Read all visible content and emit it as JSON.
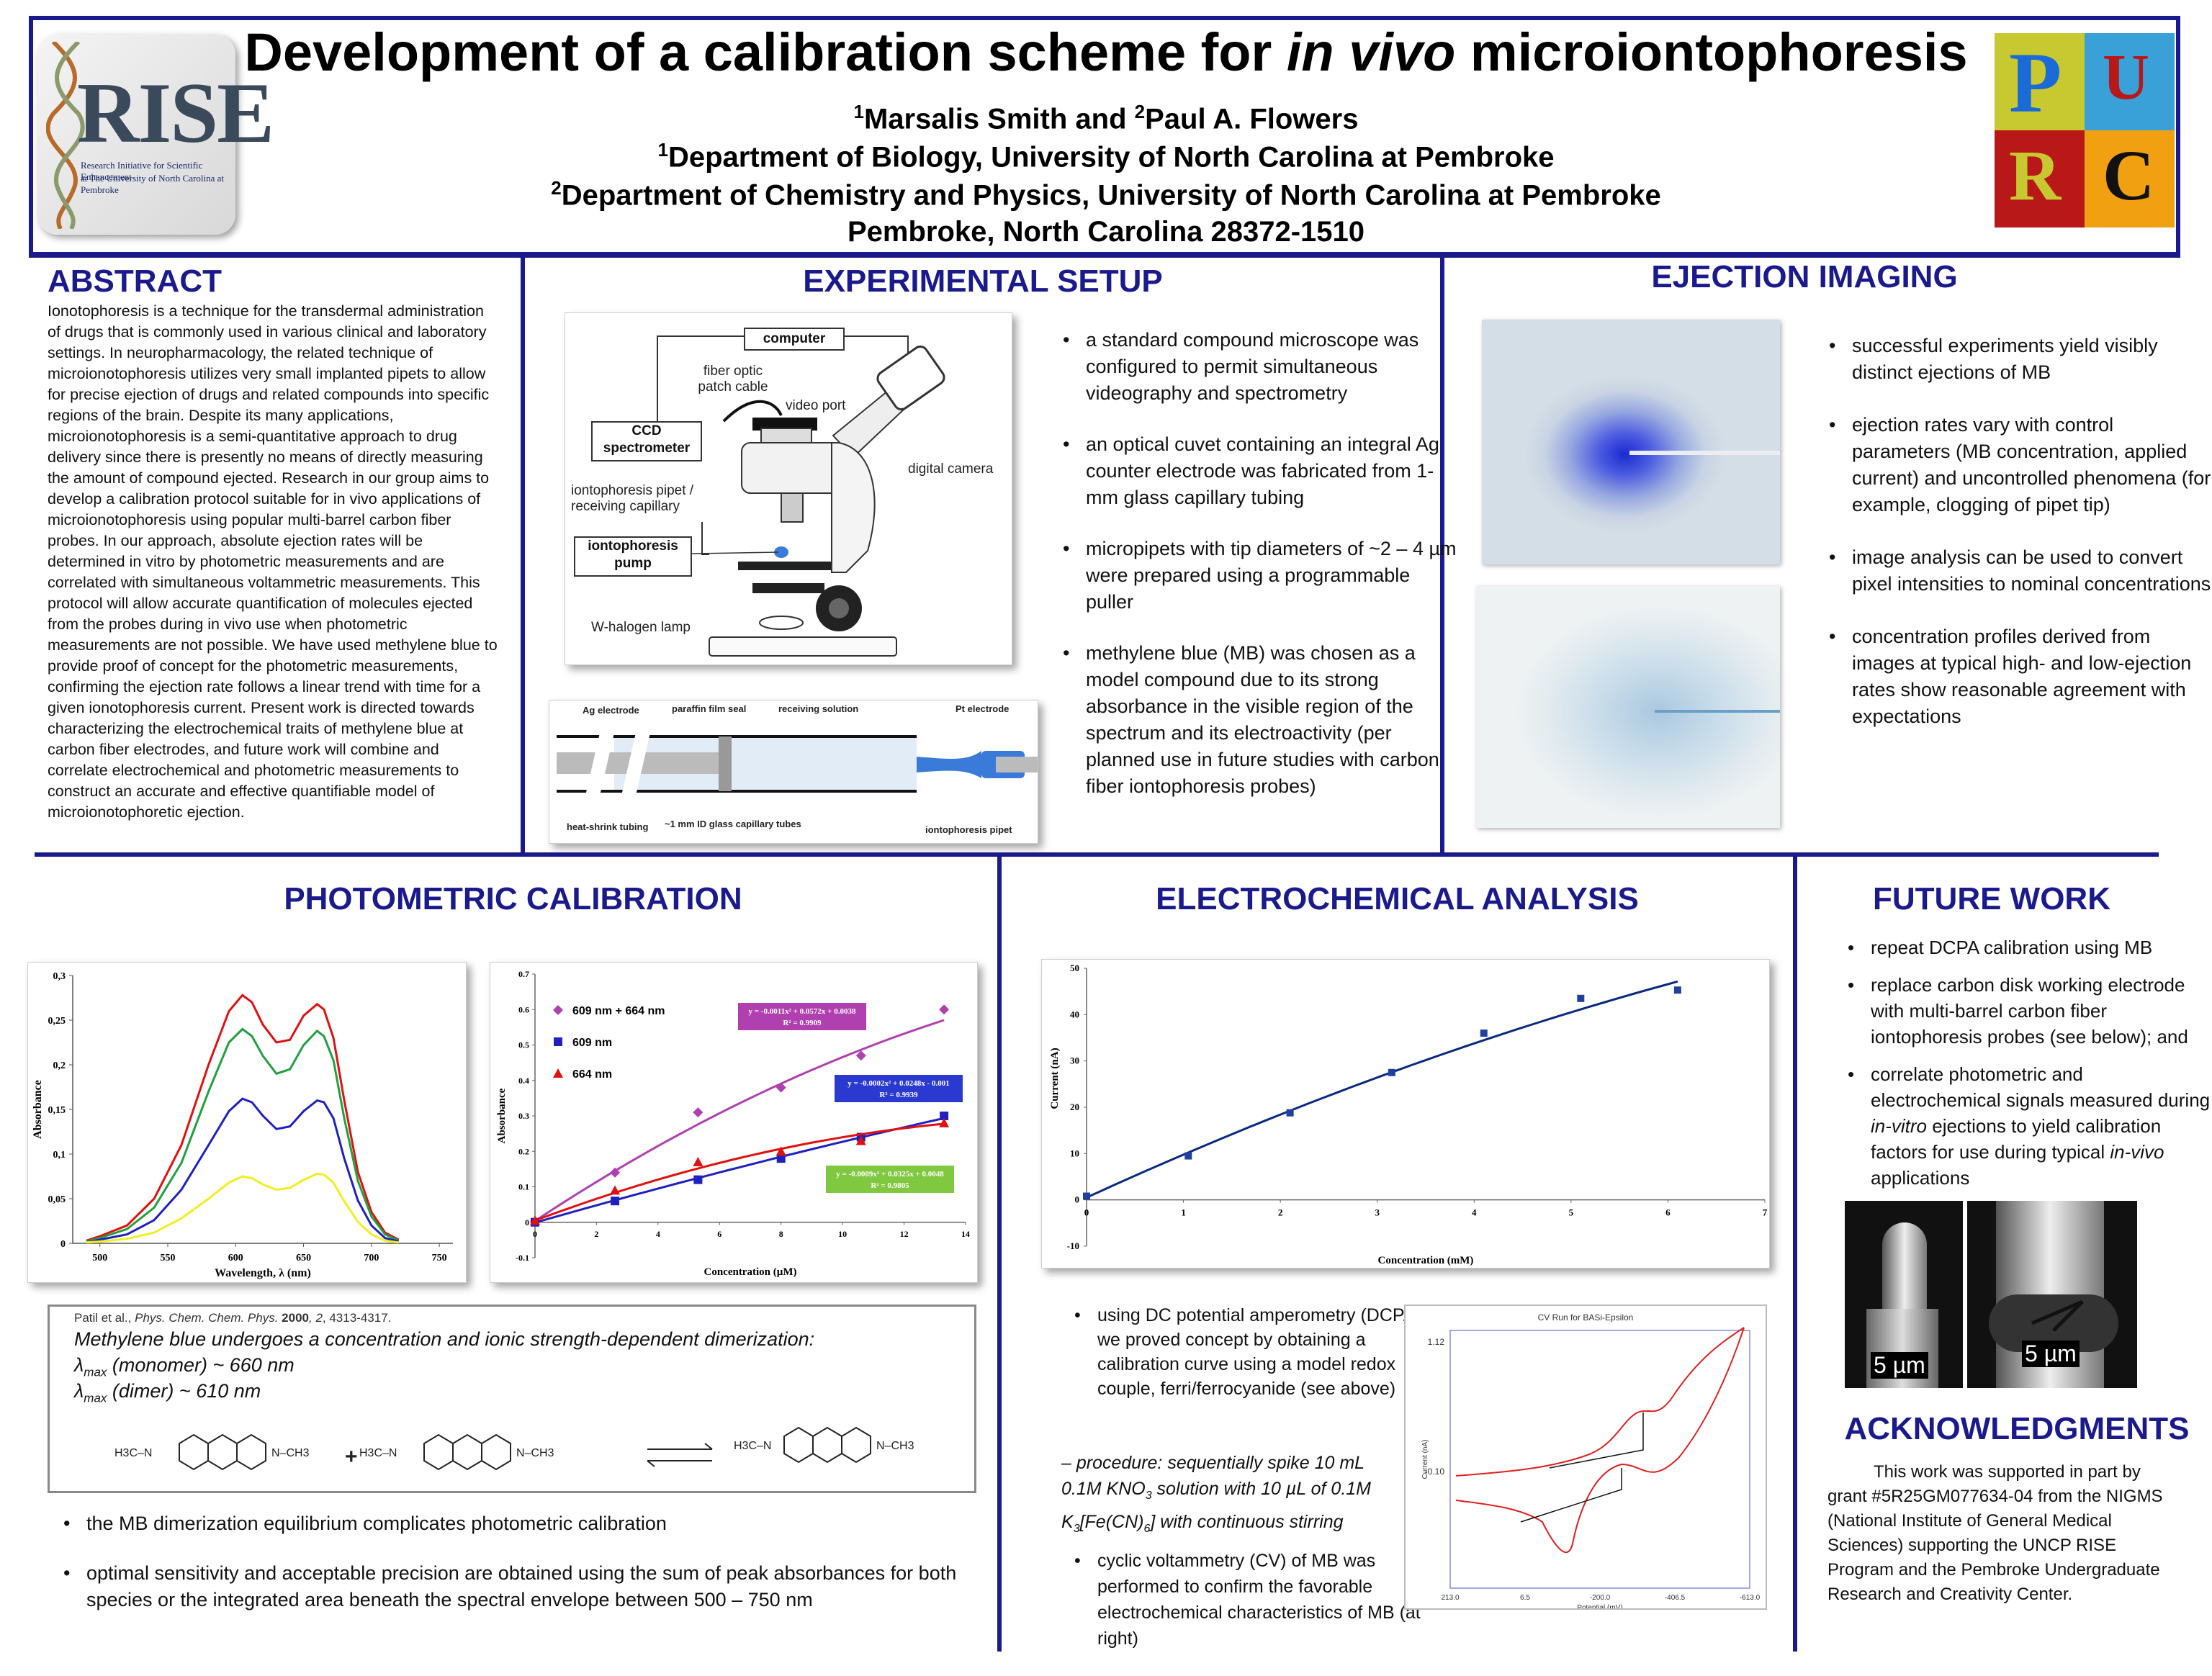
{
  "header": {
    "title_pre": "Development of a calibration scheme for ",
    "title_italic": "in vivo",
    "title_post": " microiontophoresis",
    "author_line": "Marsalis Smith and Paul A. Flowers",
    "author1_sup": "1",
    "author1": "Marsalis Smith and ",
    "author2_sup": "2",
    "author2": "Paul A. Flowers",
    "affil1_sup": "1",
    "affil1": "Department of Biology, University of North Carolina at Pembroke",
    "affil2_sup": "2",
    "affil2": "Department of Chemistry and Physics, University of North Carolina at Pembroke",
    "location": "Pembroke, North Carolina 28372-1510",
    "logo_left_text": "RISE",
    "logo_left_sub1": "Research Initiative for Scientific Enhancement",
    "logo_left_sub2": "at The University of North Carolina at Pembroke",
    "logo_right_letters": [
      "P",
      "U",
      "R",
      "C"
    ]
  },
  "abstract": {
    "heading": "ABSTRACT",
    "text": "Ionotophoresis is a technique for the transdermal administration of drugs that is commonly used in various clinical and laboratory settings.  In neuropharmacology, the related technique of microionotophoresis utilizes very small implanted pipets to allow for precise ejection of drugs and related compounds into specific regions of the brain.  Despite its many applications, microionotophoresis is a semi-quantitative approach to drug delivery since there is presently no means of directly measuring the amount of compound ejected.  Research in our group aims to develop a calibration protocol suitable for in vivo applications of microionotophoresis using popular multi-barrel carbon fiber probes.  In our approach, absolute ejection rates will be determined in vitro by photometric measurements and are correlated with simultaneous voltammetric measurements.  This protocol will allow accurate quantification of molecules ejected from the probes during in vivo use when photometric measurements are not possible.  We have used methylene blue to provide proof of concept for the photometric measurements, confirming the ejection rate follows a linear trend with time for a given ionotophoresis current.  Present work is directed towards characterizing the electrochemical traits of methylene blue at carbon fiber electrodes, and future work will combine and correlate electrochemical and photometric measurements to construct an accurate and effective quantifiable model of microionotophoretic ejection."
  },
  "setup": {
    "heading": "EXPERIMENTAL SETUP",
    "diagram": {
      "computer": "computer",
      "fiber": "fiber optic\npatch cable",
      "video_port": "video port",
      "ccd": "CCD\nspectrometer",
      "digital_camera": "digital camera",
      "pipet": "iontophoresis pipet /\nreceiving capillary",
      "pump": "iontophoresis\npump",
      "lamp": "W-halogen lamp"
    },
    "cuvette": {
      "ag": "Ag electrode",
      "paraffin": "paraffin film seal",
      "receiving": "receiving solution",
      "pt": "Pt electrode",
      "heat": "heat-shrink tubing",
      "tubes": "~1 mm ID glass capillary tubes",
      "ipipet": "iontophoresis pipet"
    },
    "bullets": [
      "a standard compound microscope was configured to permit simultaneous videography and spectrometry",
      "an optical cuvet containing an integral Ag counter electrode was fabricated from 1-mm glass capillary tubing",
      "micropipets with tip diameters of ~2 – 4 µm were prepared using a programmable puller",
      "methylene blue (MB) was chosen as a model compound due to its strong absorbance in the visible region of the spectrum and its electroactivity (per planned use in future studies with carbon fiber iontophoresis probes)"
    ]
  },
  "ejection": {
    "heading": "EJECTION IMAGING",
    "bullets": [
      "successful experiments yield visibly distinct ejections of MB",
      "ejection rates vary with control parameters (MB concentration, applied current) and uncontrolled phenomena (for example, clogging of pipet tip)",
      "image analysis can be used to convert pixel intensities to nominal concentrations",
      "concentration profiles derived from images at typical high- and low-ejection rates  show reasonable agreement with expectations"
    ]
  },
  "photometric": {
    "heading": "PHOTOMETRIC CALIBRATION",
    "ref_pre": "Patil et al., ",
    "ref_journal": "Phys. Chem. Chem. Phys.",
    "ref_year": " 2000",
    "ref_vol": ", 2",
    "ref_pages": ", 4313-4317.",
    "dimer_line": "Methylene blue undergoes  a concentration and ionic strength-dependent dimerization:",
    "lmax_mono": "λmax (monomer) ~ 660 nm",
    "lmax_mono_a": "λ",
    "lmax_mono_sub": "max",
    "lmax_mono_b": " (monomer) ~ 660 nm",
    "lmax_dimer_a": "λ",
    "lmax_dimer_sub": "max",
    "lmax_dimer_b": " (dimer) ~ 610 nm",
    "bullets": [
      "the MB dimerization equilibrium complicates photometric calibration",
      "optimal sensitivity and acceptable precision are obtained using the sum of peak absorbances for both species or the integrated area beneath the spectral envelope between 500 – 750 nm"
    ]
  },
  "electrochem": {
    "heading": "ELECTROCHEMICAL ANALYSIS",
    "bullet1": "using DC potential amperometry (DCPA) we proved concept by obtaining a calibration curve using a model redox couple, ferri/ferrocyanide (see above)",
    "procedure": "– procedure:  sequentially  spike 10 mL 0.1M KNO3 solution with 10 µL of  0.1M K3[Fe(CN)6] with continuous stirring",
    "proc_a": "– procedure:  sequentially  spike 10 mL 0.1M KNO",
    "proc_sub1": "3",
    "proc_b": " solution with 10 µL of  0.1M K",
    "proc_sub2": "3",
    "proc_c": "[Fe(CN)",
    "proc_sub3": "6",
    "proc_d": "] with continuous stirring",
    "bullet2": "cyclic voltammetry  (CV) of MB was performed to confirm the favorable electrochemical characteristics  of MB (at right)"
  },
  "future": {
    "heading": "FUTURE WORK",
    "bullets": [
      "repeat DCPA calibration using MB",
      "replace carbon disk working electrode with multi-barrel carbon fiber iontophoresis probes (see below); and"
    ],
    "b3_a": "correlate photometric and electrochemical signals measured during ",
    "b3_i1": "in-vitro",
    "b3_b": " ejections to yield calibration factors for use during typical ",
    "b3_i2": "in-vivo",
    "b3_c": " applications",
    "scale1": "5 µm",
    "scale2": "5 µm"
  },
  "ack": {
    "heading": "ACKNOWLEDGMENTS",
    "text": "This work was supported in part by grant  #5R25GM077634-04  from the NIGMS (National Institute of General Medical Sciences) supporting the UNCP RISE Program and the Pembroke Undergraduate Research and Creativity Center."
  },
  "chart_data": [
    {
      "id": "spectra",
      "type": "line",
      "xlabel": "Wavelength, λ (nm)",
      "ylabel": "Absorbance",
      "xlim": [
        500,
        750
      ],
      "ylim": [
        0,
        0.3
      ],
      "xticks": [
        "500",
        "550",
        "600",
        "650",
        "700",
        "750"
      ],
      "yticks": [
        "0",
        "0,05",
        "0,1",
        "0,15",
        "0,2",
        "0,25",
        "0,3"
      ],
      "x": [
        490,
        500,
        520,
        540,
        560,
        580,
        595,
        605,
        612,
        620,
        630,
        640,
        650,
        660,
        665,
        672,
        680,
        690,
        700,
        710,
        720
      ],
      "series": [
        {
          "color": "#e01010",
          "values": [
            0.003,
            0.008,
            0.02,
            0.05,
            0.11,
            0.2,
            0.26,
            0.278,
            0.27,
            0.245,
            0.225,
            0.228,
            0.255,
            0.268,
            0.262,
            0.23,
            0.16,
            0.08,
            0.035,
            0.012,
            0.004
          ]
        },
        {
          "color": "#20a040",
          "values": [
            0.002,
            0.006,
            0.016,
            0.04,
            0.09,
            0.17,
            0.225,
            0.24,
            0.232,
            0.21,
            0.19,
            0.195,
            0.222,
            0.238,
            0.232,
            0.205,
            0.14,
            0.07,
            0.03,
            0.01,
            0.003
          ]
        },
        {
          "color": "#2020c0",
          "values": [
            0.001,
            0.004,
            0.01,
            0.026,
            0.06,
            0.11,
            0.148,
            0.162,
            0.158,
            0.143,
            0.128,
            0.131,
            0.148,
            0.16,
            0.158,
            0.14,
            0.095,
            0.048,
            0.02,
            0.006,
            0.002
          ]
        },
        {
          "color": "#f0f020",
          "values": [
            0.001,
            0.002,
            0.005,
            0.012,
            0.028,
            0.05,
            0.068,
            0.075,
            0.073,
            0.066,
            0.06,
            0.062,
            0.071,
            0.078,
            0.077,
            0.068,
            0.047,
            0.024,
            0.01,
            0.003,
            0.001
          ]
        }
      ]
    },
    {
      "id": "calibration",
      "type": "scatter",
      "xlabel": "Concentration (µM)",
      "ylabel": "Absorbance",
      "xlim": [
        0,
        14
      ],
      "ylim": [
        -0.1,
        0.7
      ],
      "xticks": [
        "0",
        "2",
        "4",
        "6",
        "8",
        "10",
        "12",
        "14"
      ],
      "yticks": [
        "-0.1",
        "0",
        "0.1",
        "0.2",
        "0.3",
        "0.4",
        "0.5",
        "0.6",
        "0.7"
      ],
      "series": [
        {
          "name": "609 nm + 664 nm",
          "color": "#b040b0",
          "marker": "diamond",
          "x": [
            0,
            2.6,
            5.3,
            8,
            10.6,
            13.3
          ],
          "y": [
            0.002,
            0.14,
            0.31,
            0.38,
            0.47,
            0.6
          ],
          "fit": [
            0.0038,
            0.0572,
            -0.0011
          ],
          "eq": "y = -0.0011x² + 0.0572x + 0.0038",
          "r2": "R² = 0.9909",
          "eqcolor": "#b040b0"
        },
        {
          "name": "609 nm",
          "color": "#2020c0",
          "marker": "square",
          "x": [
            0,
            2.6,
            5.3,
            8,
            10.6,
            13.3
          ],
          "y": [
            0,
            0.06,
            0.12,
            0.18,
            0.24,
            0.3
          ],
          "fit": [
            -0.001,
            0.0248,
            -0.0002
          ],
          "eq": "y = -0.0002x² + 0.0248x - 0.001",
          "r2": "R² = 0.9939",
          "eqcolor": "#2a3ad0"
        },
        {
          "name": "664 nm",
          "color": "#e01010",
          "marker": "triangle",
          "x": [
            0,
            2.6,
            5.3,
            8,
            10.6,
            13.3
          ],
          "y": [
            0.005,
            0.09,
            0.17,
            0.2,
            0.23,
            0.28
          ],
          "fit": [
            0.0048,
            0.0325,
            -0.0009
          ],
          "eq": "y = -0.0009x² + 0.0325x + 0.0048",
          "r2": "R² = 0.9805",
          "eqcolor": "#80c840"
        }
      ]
    },
    {
      "id": "dcpa",
      "type": "scatter",
      "xlabel": "Concentration (mM)",
      "ylabel": "Current (nA)",
      "xlim": [
        0,
        7
      ],
      "ylim": [
        -10,
        50
      ],
      "xticks": [
        "0",
        "1",
        "2",
        "3",
        "4",
        "5",
        "6",
        "7"
      ],
      "yticks": [
        "-10",
        "0",
        "10",
        "20",
        "30",
        "40",
        "50"
      ],
      "series": [
        {
          "color": "#2040a0",
          "x": [
            0,
            1.05,
            2.1,
            3.15,
            4.1,
            5.1,
            6.1
          ],
          "y": [
            0.8,
            9.5,
            18.8,
            27.5,
            36,
            43.5,
            45.3
          ]
        }
      ]
    },
    {
      "id": "cv",
      "type": "line",
      "title": "CV Run for BASi-Epsilon",
      "xlabel": "Potential (mV)",
      "ylabel": "Current (nA)",
      "xticks": [
        "213.0",
        "6.5",
        "-200.0",
        "-406.5",
        "-613.0"
      ],
      "yticks": [
        "1.12",
        "-0.10"
      ]
    }
  ]
}
